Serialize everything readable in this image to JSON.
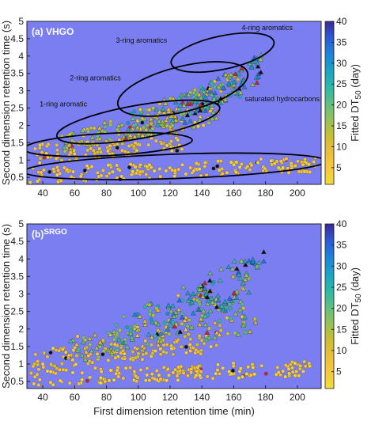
{
  "chart_data": [
    {
      "type": "scatter",
      "panel_label": "(a) VHGO",
      "panel_label_main": "(a)",
      "panel_label_sample": "VHGO",
      "xlabel": "",
      "ylabel": "Second dimension retention time (s)",
      "xlim": [
        30,
        215
      ],
      "ylim": [
        0.3,
        5
      ],
      "xticks": [
        40,
        60,
        80,
        100,
        120,
        140,
        160,
        180,
        200
      ],
      "yticks": [
        0.5,
        1,
        1.5,
        2,
        2.5,
        3,
        3.5,
        4,
        4.5,
        5
      ],
      "background": "#7a7ef0",
      "colorbar": {
        "label": "Fitted DT50 (day)",
        "label_main": "Fitted DT",
        "label_sub": "50",
        "label_unit": " (day)",
        "min": 1,
        "max": 40,
        "ticks": [
          5,
          10,
          15,
          20,
          25,
          30,
          35,
          40
        ]
      },
      "annotations": [
        {
          "text": "1-ring aromatic",
          "x": 38,
          "y": 2.55
        },
        {
          "text": "2-ring aromatics",
          "x": 57,
          "y": 3.3
        },
        {
          "text": "3-ring aromatics",
          "x": 86,
          "y": 4.38
        },
        {
          "text": "4-ring aromatics",
          "x": 165,
          "y": 4.75
        },
        {
          "text": "saturated hydrocarbons",
          "x": 167,
          "y": 2.7
        }
      ],
      "ellipses": [
        {
          "name": "saturated",
          "cx": 123,
          "cy": 0.82,
          "rx": 95,
          "ry": 0.35,
          "rot": -2
        },
        {
          "name": "1-ring",
          "cx": 81,
          "cy": 1.45,
          "rx": 53,
          "ry": 0.32,
          "rot": -3
        },
        {
          "name": "2-ring",
          "cx": 100,
          "cy": 2.1,
          "rx": 52,
          "ry": 0.48,
          "rot": -10
        },
        {
          "name": "3-ring",
          "cx": 128,
          "cy": 3.05,
          "rx": 42,
          "ry": 0.65,
          "rot": -14
        },
        {
          "name": "4-ring",
          "cx": 153,
          "cy": 4.1,
          "rx": 33,
          "ry": 0.48,
          "rot": -12
        }
      ],
      "clusters": [
        {
          "name": "saturated",
          "n": 180,
          "x": [
            32,
            212
          ],
          "y0": 0.55,
          "slope": 0.0018,
          "spread": 0.22,
          "shape": "circle",
          "dt50": [
            2,
            8
          ]
        },
        {
          "name": "1-ring",
          "n": 120,
          "x": [
            34,
            128
          ],
          "y0": 1.15,
          "slope": 0.004,
          "spread": 0.28,
          "shape": "circle",
          "dt50": [
            3,
            12
          ]
        },
        {
          "name": "2-ring",
          "n": 130,
          "x": [
            52,
            150
          ],
          "y0": 1.55,
          "slope": 0.0085,
          "spread": 0.32,
          "shape": "mix",
          "dt50": [
            4,
            22
          ]
        },
        {
          "name": "3-ring",
          "n": 120,
          "x": [
            92,
            165
          ],
          "y0": 1.95,
          "slope": 0.017,
          "spread": 0.38,
          "shape": "mix",
          "dt50": [
            8,
            30
          ]
        },
        {
          "name": "4-ring",
          "n": 70,
          "x": [
            128,
            178
          ],
          "y0": 2.4,
          "slope": 0.026,
          "spread": 0.4,
          "shape": "triangle",
          "dt50": [
            15,
            40
          ]
        }
      ],
      "seed": 11
    },
    {
      "type": "scatter",
      "panel_label": "(b) SRGO",
      "panel_label_main": "(b)",
      "panel_label_sample": "SRGO",
      "xlabel": "First dimension retention time (min)",
      "ylabel": "Second dimension retention time (s)",
      "xlim": [
        30,
        215
      ],
      "ylim": [
        0.3,
        5
      ],
      "xticks": [
        40,
        60,
        80,
        100,
        120,
        140,
        160,
        180,
        200
      ],
      "yticks": [
        0.5,
        1,
        1.5,
        2,
        2.5,
        3,
        3.5,
        4,
        4.5,
        5
      ],
      "background": "#7a7ef0",
      "colorbar": {
        "label": "Fitted DT50 (day)",
        "label_main": "Fitted DT",
        "label_sub": "50",
        "label_unit": " (day)",
        "min": 1,
        "max": 40,
        "ticks": [
          5,
          10,
          15,
          20,
          25,
          30,
          35,
          40
        ]
      },
      "annotations": [],
      "ellipses": [],
      "clusters": [
        {
          "name": "saturated",
          "n": 170,
          "x": [
            32,
            212
          ],
          "y0": 0.6,
          "slope": 0.0016,
          "spread": 0.22,
          "shape": "circle",
          "dt50": [
            2,
            8
          ]
        },
        {
          "name": "1-ring",
          "n": 120,
          "x": [
            34,
            150
          ],
          "y0": 1.1,
          "slope": 0.0045,
          "spread": 0.3,
          "shape": "circle",
          "dt50": [
            3,
            12
          ]
        },
        {
          "name": "2-ring",
          "n": 130,
          "x": [
            55,
            175
          ],
          "y0": 1.4,
          "slope": 0.0075,
          "spread": 0.38,
          "shape": "mix",
          "dt50": [
            5,
            24
          ]
        },
        {
          "name": "3-ring",
          "n": 120,
          "x": [
            85,
            170
          ],
          "y0": 1.9,
          "slope": 0.015,
          "spread": 0.5,
          "shape": "mix",
          "dt50": [
            8,
            32
          ]
        },
        {
          "name": "4-ring",
          "n": 60,
          "x": [
            120,
            180
          ],
          "y0": 2.5,
          "slope": 0.022,
          "spread": 0.55,
          "shape": "triangle",
          "dt50": [
            15,
            40
          ]
        }
      ],
      "seed": 29
    }
  ]
}
